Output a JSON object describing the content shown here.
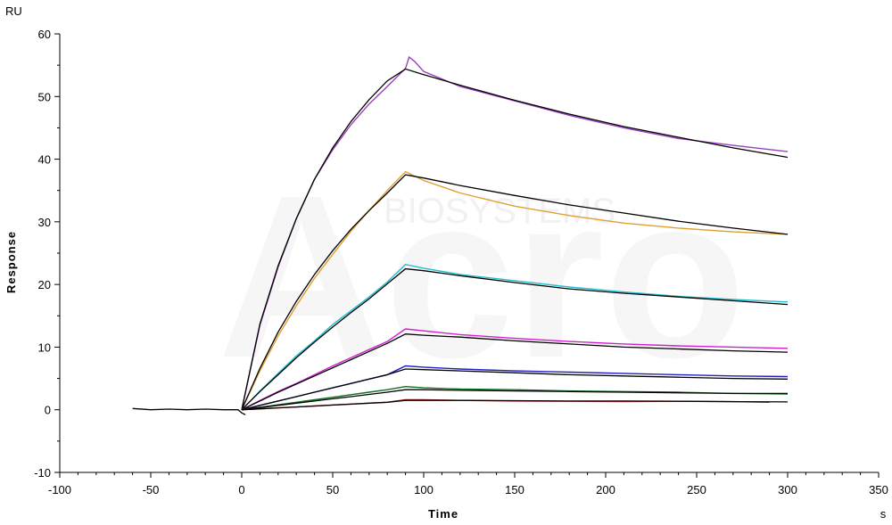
{
  "chart_data": {
    "type": "line",
    "title": "",
    "xlabel": "Time",
    "ylabel": "Response",
    "x_unit": "s",
    "y_unit": "RU",
    "xlim": [
      -100,
      350
    ],
    "ylim": [
      -10,
      60
    ],
    "x_ticks": [
      -100,
      -50,
      0,
      50,
      100,
      150,
      200,
      250,
      300,
      350
    ],
    "y_ticks": [
      -10,
      0,
      10,
      20,
      30,
      40,
      50,
      60
    ],
    "grid": false,
    "legend": "none",
    "watermark": {
      "brand": "Acro",
      "subtitle": "BIOSYSTEMS"
    },
    "series": [
      {
        "color": "#9b3fbf",
        "fit_color": "#000000",
        "baseline": [
          [
            -60,
            0.2
          ],
          [
            -50,
            0.0
          ],
          [
            -40,
            0.1
          ],
          [
            -30,
            0.0
          ],
          [
            -20,
            0.1
          ],
          [
            -10,
            0.0
          ],
          [
            -2,
            0.0
          ],
          [
            0,
            -0.5
          ],
          [
            2,
            -0.8
          ]
        ],
        "data": [
          [
            0,
            0
          ],
          [
            10,
            13.5
          ],
          [
            20,
            22.8
          ],
          [
            30,
            30.5
          ],
          [
            40,
            36.8
          ],
          [
            50,
            41.5
          ],
          [
            60,
            45.5
          ],
          [
            70,
            48.8
          ],
          [
            80,
            51.6
          ],
          [
            90,
            54.5
          ],
          [
            92,
            56.3
          ],
          [
            95,
            55.6
          ],
          [
            100,
            54.0
          ],
          [
            120,
            51.6
          ],
          [
            150,
            49.3
          ],
          [
            180,
            47.0
          ],
          [
            210,
            45.0
          ],
          [
            240,
            43.3
          ],
          [
            270,
            42.2
          ],
          [
            300,
            41.2
          ]
        ],
        "fit": [
          [
            0,
            0
          ],
          [
            10,
            13.7
          ],
          [
            20,
            23.0
          ],
          [
            30,
            30.5
          ],
          [
            40,
            36.8
          ],
          [
            50,
            41.8
          ],
          [
            60,
            46.0
          ],
          [
            70,
            49.5
          ],
          [
            80,
            52.5
          ],
          [
            90,
            54.4
          ],
          [
            100,
            53.5
          ],
          [
            120,
            51.8
          ],
          [
            150,
            49.4
          ],
          [
            180,
            47.2
          ],
          [
            210,
            45.2
          ],
          [
            240,
            43.5
          ],
          [
            270,
            41.8
          ],
          [
            300,
            40.3
          ]
        ]
      },
      {
        "color": "#e0a030",
        "fit_color": "#000000",
        "data": [
          [
            0,
            0
          ],
          [
            10,
            6.2
          ],
          [
            20,
            11.8
          ],
          [
            30,
            16.6
          ],
          [
            40,
            21.0
          ],
          [
            50,
            24.8
          ],
          [
            60,
            28.5
          ],
          [
            70,
            31.8
          ],
          [
            80,
            35.0
          ],
          [
            90,
            38.0
          ],
          [
            100,
            36.6
          ],
          [
            120,
            34.6
          ],
          [
            150,
            32.5
          ],
          [
            180,
            31.0
          ],
          [
            210,
            29.8
          ],
          [
            240,
            29.0
          ],
          [
            270,
            28.4
          ],
          [
            300,
            28.0
          ]
        ],
        "fit": [
          [
            0,
            0
          ],
          [
            10,
            6.6
          ],
          [
            20,
            12.4
          ],
          [
            30,
            17.3
          ],
          [
            40,
            21.6
          ],
          [
            50,
            25.4
          ],
          [
            60,
            28.8
          ],
          [
            70,
            31.8
          ],
          [
            80,
            34.6
          ],
          [
            90,
            37.5
          ],
          [
            100,
            37.0
          ],
          [
            120,
            35.8
          ],
          [
            150,
            34.2
          ],
          [
            180,
            32.7
          ],
          [
            210,
            31.4
          ],
          [
            240,
            30.1
          ],
          [
            270,
            29.0
          ],
          [
            300,
            28.0
          ]
        ]
      },
      {
        "color": "#20c0d0",
        "fit_color": "#000000",
        "data": [
          [
            0,
            0
          ],
          [
            10,
            3.0
          ],
          [
            20,
            5.8
          ],
          [
            30,
            8.6
          ],
          [
            40,
            11.0
          ],
          [
            50,
            13.6
          ],
          [
            60,
            15.8
          ],
          [
            70,
            18.0
          ],
          [
            80,
            20.4
          ],
          [
            90,
            23.2
          ],
          [
            100,
            22.6
          ],
          [
            120,
            21.6
          ],
          [
            150,
            20.6
          ],
          [
            180,
            19.6
          ],
          [
            210,
            18.8
          ],
          [
            240,
            18.1
          ],
          [
            270,
            17.6
          ],
          [
            300,
            17.2
          ]
        ],
        "fit": [
          [
            0,
            0
          ],
          [
            10,
            2.9
          ],
          [
            20,
            5.6
          ],
          [
            30,
            8.3
          ],
          [
            40,
            10.8
          ],
          [
            50,
            13.2
          ],
          [
            60,
            15.5
          ],
          [
            70,
            17.7
          ],
          [
            80,
            20.1
          ],
          [
            90,
            22.5
          ],
          [
            100,
            22.2
          ],
          [
            120,
            21.4
          ],
          [
            150,
            20.3
          ],
          [
            180,
            19.3
          ],
          [
            210,
            18.6
          ],
          [
            240,
            18.0
          ],
          [
            270,
            17.4
          ],
          [
            300,
            16.8
          ]
        ]
      },
      {
        "color": "#d020d0",
        "fit_color": "#000000",
        "data": [
          [
            0,
            0
          ],
          [
            10,
            1.5
          ],
          [
            20,
            2.9
          ],
          [
            30,
            4.2
          ],
          [
            40,
            5.6
          ],
          [
            50,
            7.0
          ],
          [
            60,
            8.3
          ],
          [
            70,
            9.6
          ],
          [
            80,
            10.9
          ],
          [
            90,
            12.9
          ],
          [
            100,
            12.6
          ],
          [
            120,
            12.0
          ],
          [
            150,
            11.4
          ],
          [
            180,
            10.9
          ],
          [
            210,
            10.5
          ],
          [
            240,
            10.2
          ],
          [
            270,
            10.0
          ],
          [
            300,
            9.8
          ]
        ],
        "fit": [
          [
            0,
            0
          ],
          [
            10,
            1.4
          ],
          [
            20,
            2.8
          ],
          [
            30,
            4.1
          ],
          [
            40,
            5.4
          ],
          [
            50,
            6.7
          ],
          [
            60,
            8.0
          ],
          [
            70,
            9.3
          ],
          [
            80,
            10.6
          ],
          [
            90,
            12.1
          ],
          [
            100,
            11.9
          ],
          [
            120,
            11.6
          ],
          [
            150,
            11.0
          ],
          [
            180,
            10.5
          ],
          [
            210,
            10.0
          ],
          [
            240,
            9.7
          ],
          [
            270,
            9.4
          ],
          [
            300,
            9.2
          ]
        ]
      },
      {
        "color": "#2020c0",
        "fit_color": "#000000",
        "data": [
          [
            0,
            0
          ],
          [
            10,
            0.7
          ],
          [
            20,
            1.4
          ],
          [
            30,
            2.1
          ],
          [
            40,
            2.8
          ],
          [
            50,
            3.5
          ],
          [
            60,
            4.2
          ],
          [
            70,
            4.9
          ],
          [
            80,
            5.6
          ],
          [
            90,
            7.0
          ],
          [
            100,
            6.8
          ],
          [
            120,
            6.5
          ],
          [
            150,
            6.2
          ],
          [
            180,
            6.0
          ],
          [
            210,
            5.8
          ],
          [
            240,
            5.6
          ],
          [
            270,
            5.4
          ],
          [
            300,
            5.3
          ]
        ],
        "fit": [
          [
            0,
            0
          ],
          [
            10,
            0.7
          ],
          [
            20,
            1.4
          ],
          [
            30,
            2.1
          ],
          [
            40,
            2.8
          ],
          [
            50,
            3.5
          ],
          [
            60,
            4.2
          ],
          [
            70,
            4.9
          ],
          [
            80,
            5.6
          ],
          [
            90,
            6.5
          ],
          [
            100,
            6.4
          ],
          [
            120,
            6.2
          ],
          [
            150,
            5.9
          ],
          [
            180,
            5.6
          ],
          [
            210,
            5.4
          ],
          [
            240,
            5.2
          ],
          [
            270,
            5.0
          ],
          [
            300,
            4.9
          ]
        ]
      },
      {
        "color": "#107020",
        "fit_color": "#000000",
        "data": [
          [
            0,
            0
          ],
          [
            10,
            0.4
          ],
          [
            20,
            0.8
          ],
          [
            30,
            1.2
          ],
          [
            40,
            1.6
          ],
          [
            50,
            2.0
          ],
          [
            60,
            2.4
          ],
          [
            70,
            2.8
          ],
          [
            80,
            3.2
          ],
          [
            90,
            3.7
          ],
          [
            100,
            3.5
          ],
          [
            120,
            3.3
          ],
          [
            150,
            3.2
          ],
          [
            180,
            3.0
          ],
          [
            210,
            2.9
          ],
          [
            240,
            2.8
          ],
          [
            270,
            2.6
          ],
          [
            300,
            2.5
          ]
        ],
        "fit": [
          [
            0,
            0
          ],
          [
            10,
            0.35
          ],
          [
            20,
            0.7
          ],
          [
            30,
            1.05
          ],
          [
            40,
            1.4
          ],
          [
            50,
            1.75
          ],
          [
            60,
            2.1
          ],
          [
            70,
            2.45
          ],
          [
            80,
            2.8
          ],
          [
            90,
            3.2
          ],
          [
            100,
            3.2
          ],
          [
            120,
            3.1
          ],
          [
            150,
            3.0
          ],
          [
            180,
            2.9
          ],
          [
            210,
            2.8
          ],
          [
            240,
            2.7
          ],
          [
            270,
            2.6
          ],
          [
            300,
            2.6
          ]
        ]
      },
      {
        "color": "#c02020",
        "fit_color": "#000000",
        "data": [
          [
            0,
            0
          ],
          [
            10,
            0.15
          ],
          [
            20,
            0.3
          ],
          [
            30,
            0.45
          ],
          [
            40,
            0.6
          ],
          [
            50,
            0.75
          ],
          [
            60,
            0.9
          ],
          [
            70,
            1.05
          ],
          [
            80,
            1.2
          ],
          [
            90,
            1.6
          ],
          [
            100,
            1.6
          ],
          [
            120,
            1.5
          ],
          [
            150,
            1.4
          ],
          [
            180,
            1.35
          ],
          [
            210,
            1.3
          ],
          [
            240,
            1.35
          ],
          [
            270,
            1.3
          ],
          [
            290,
            1.2
          ]
        ],
        "fit": [
          [
            0,
            0
          ],
          [
            10,
            0.15
          ],
          [
            20,
            0.3
          ],
          [
            30,
            0.45
          ],
          [
            40,
            0.6
          ],
          [
            50,
            0.75
          ],
          [
            60,
            0.9
          ],
          [
            70,
            1.05
          ],
          [
            80,
            1.2
          ],
          [
            90,
            1.5
          ],
          [
            100,
            1.5
          ],
          [
            120,
            1.5
          ],
          [
            150,
            1.45
          ],
          [
            180,
            1.4
          ],
          [
            210,
            1.4
          ],
          [
            240,
            1.35
          ],
          [
            270,
            1.3
          ],
          [
            300,
            1.25
          ]
        ]
      }
    ]
  }
}
